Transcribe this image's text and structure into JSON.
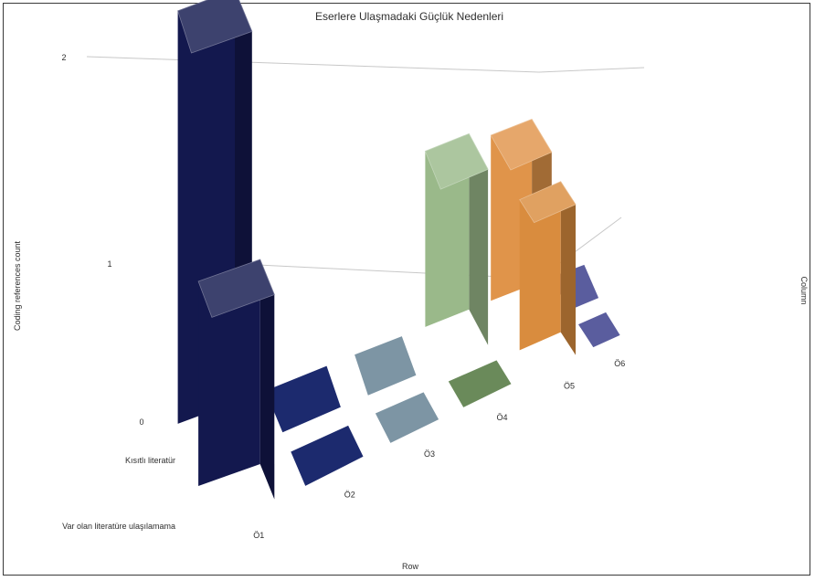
{
  "chart_data": {
    "type": "bar",
    "title": "Eserlere Ulaşmadaki Güçlük Nedenleri",
    "xlabel": "Row",
    "ylabel": "Coding references count",
    "zlabel": "Column",
    "categories": [
      "Ö1",
      "Ö2",
      "Ö3",
      "Ö4",
      "Ö5",
      "Ö6"
    ],
    "yticks": [
      0,
      1,
      2
    ],
    "ylim": [
      0,
      2
    ],
    "grid": true,
    "series": [
      {
        "name": "Kısıtlı literatür",
        "values": [
          2,
          0,
          0,
          1,
          1,
          0
        ],
        "colors": [
          "#13184e",
          "#1c2a6e",
          "#7d95a4",
          "#9ab98a",
          "#e0944a",
          "#5a5d9e"
        ]
      },
      {
        "name": "Var olan literatüre ulaşılamama",
        "values": [
          1,
          0,
          0,
          0,
          1,
          0
        ],
        "colors": [
          "#13184e",
          "#1c2a6e",
          "#7d95a4",
          "#6a8a5a",
          "#d98c3e",
          "#5a5d9e"
        ]
      }
    ]
  }
}
